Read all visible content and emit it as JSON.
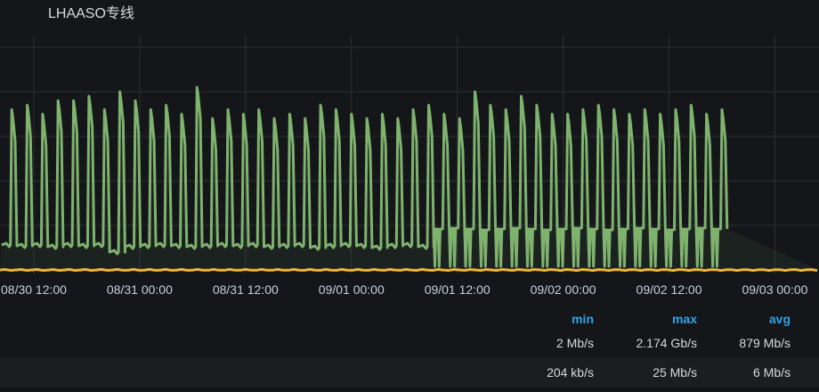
{
  "panel": {
    "title": "LHAASO专线"
  },
  "chart_data": {
    "type": "line",
    "x_tick_labels": [
      "08/30 12:00",
      "08/31 00:00",
      "08/31 12:00",
      "09/01 00:00",
      "09/01 12:00",
      "09/02 00:00",
      "09/02 12:00",
      "09/03 00:00"
    ],
    "xlim": [
      "08/30 08:10",
      "09/03 05:00"
    ],
    "ylim": [
      0,
      2.6
    ],
    "y_unit": "Gb/s",
    "y_gridlines": [
      0.5,
      1.0,
      1.5,
      2.0,
      2.5
    ],
    "grid": true,
    "series": [
      {
        "color": "#7eb26d",
        "pulse_start": "08/30 08:20",
        "pulse_interval_hours": 1.75,
        "pulse_peaks": [
          1.8,
          1.85,
          1.75,
          1.9,
          1.9,
          1.95,
          1.8,
          2.0,
          1.9,
          1.8,
          1.85,
          1.75,
          2.05,
          1.7,
          1.8,
          1.75,
          1.8,
          1.7,
          1.75,
          1.7,
          1.85,
          1.8,
          1.75,
          1.7,
          1.75,
          1.7,
          1.8,
          1.85,
          1.75,
          1.7,
          2.0,
          1.85,
          1.8,
          1.95,
          1.85,
          1.75,
          1.75,
          1.8,
          1.85,
          1.8,
          1.75,
          1.8,
          1.75,
          1.8,
          1.85,
          1.75,
          1.8
        ],
        "pulse_lows": [
          0.28,
          0.27,
          0.28,
          0.26,
          0.28,
          0.27,
          0.28,
          0.2,
          0.26,
          0.27,
          0.28,
          0.27,
          0.26,
          0.27,
          0.28,
          0.27,
          0.28,
          0.26,
          0.27,
          0.28,
          0.25,
          0.27,
          0.28,
          0.27,
          0.25,
          0.27,
          0.28,
          0.26,
          0.46,
          0.47,
          0.46,
          0.45,
          0.46,
          0.47,
          0.46,
          0.45,
          0.46,
          0.47,
          0.46,
          0.45,
          0.46,
          0.47,
          0.46,
          0.45,
          0.46,
          0.47,
          0.46
        ]
      },
      {
        "color": "#f2b632",
        "level": 0.0
      }
    ]
  },
  "legend": {
    "headers": [
      "min",
      "max",
      "avg"
    ],
    "rows": [
      [
        "2 Mb/s",
        "2.174 Gb/s",
        "879 Mb/s"
      ],
      [
        "204 kb/s",
        "25 Mb/s",
        "6 Mb/s"
      ]
    ]
  }
}
